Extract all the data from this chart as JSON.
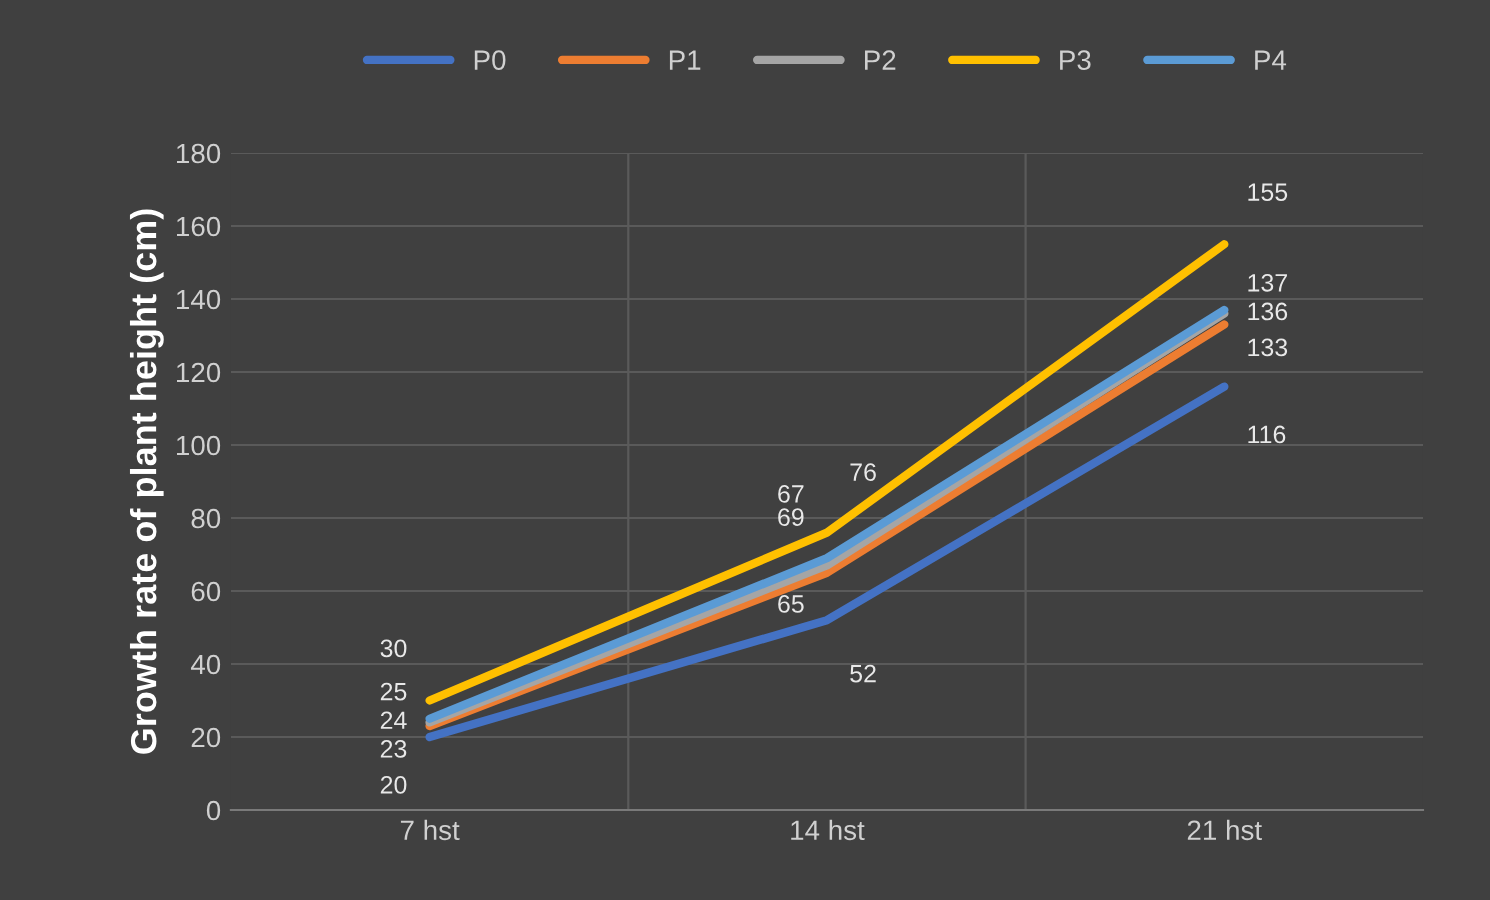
{
  "chart_data": {
    "type": "line",
    "ylabel": "Growth rate of plant height (cm)",
    "categories": [
      "7 hst",
      "14 hst",
      "21 hst"
    ],
    "series": [
      {
        "name": "P0",
        "color": "#4472c4",
        "values": [
          20,
          52,
          116
        ]
      },
      {
        "name": "P1",
        "color": "#ed7d31",
        "values": [
          23,
          65,
          133
        ]
      },
      {
        "name": "P2",
        "color": "#a5a5a5",
        "values": [
          24,
          67,
          136
        ]
      },
      {
        "name": "P3",
        "color": "#ffc000",
        "values": [
          30,
          76,
          155
        ]
      },
      {
        "name": "P4",
        "color": "#5b9bd5",
        "values": [
          25,
          69,
          137
        ]
      }
    ],
    "ylim": [
      0,
      180
    ],
    "yticks": [
      0,
      20,
      40,
      60,
      80,
      100,
      120,
      140,
      160,
      180
    ],
    "grid": true,
    "legend": "top",
    "data_labels": true,
    "marker": "none",
    "line_style": "solid"
  }
}
